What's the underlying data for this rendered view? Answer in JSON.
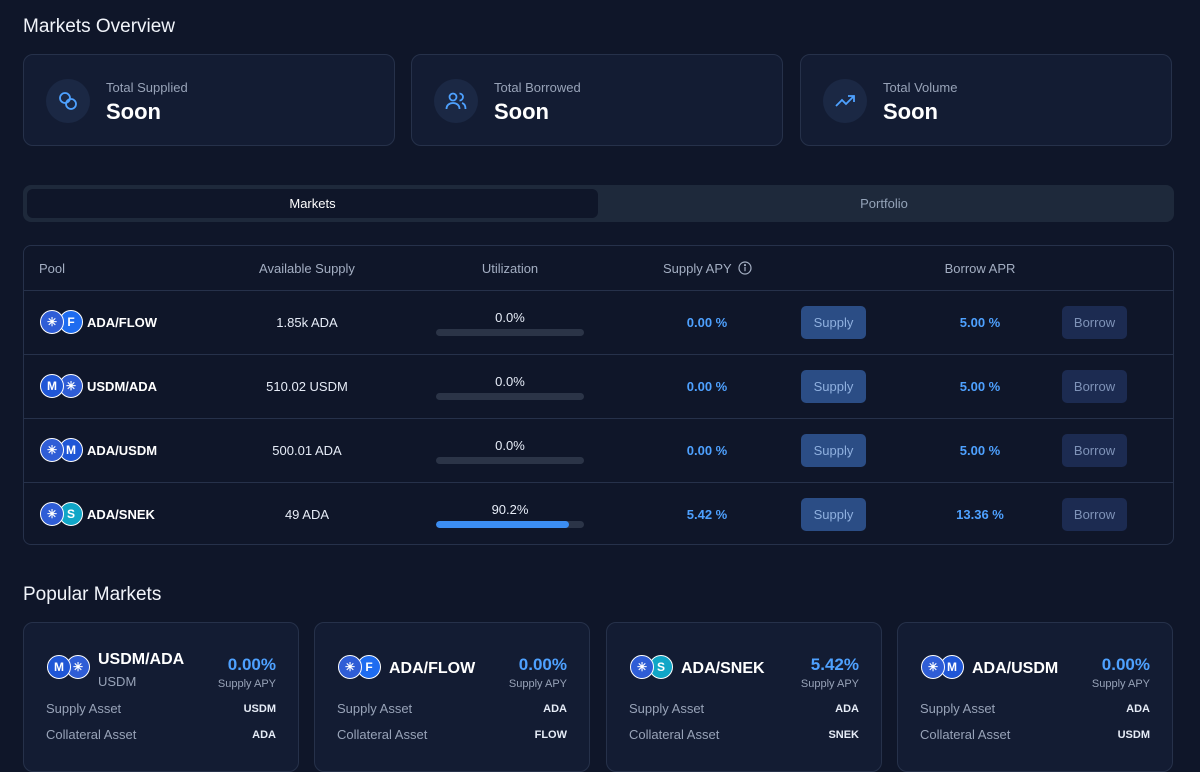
{
  "overview": {
    "title": "Markets Overview",
    "cards": [
      {
        "label": "Total Supplied",
        "value": "Soon",
        "icon": "coins-icon"
      },
      {
        "label": "Total Borrowed",
        "value": "Soon",
        "icon": "users-icon"
      },
      {
        "label": "Total Volume",
        "value": "Soon",
        "icon": "trending-up-icon"
      }
    ]
  },
  "tabs": {
    "markets": "Markets",
    "portfolio": "Portfolio",
    "active": "Markets"
  },
  "table": {
    "headers": {
      "pool": "Pool",
      "available": "Available Supply",
      "utilization": "Utilization",
      "supply_apy": "Supply APY",
      "borrow_apr": "Borrow APR"
    },
    "supply_button": "Supply",
    "borrow_button": "Borrow",
    "rows": [
      {
        "pool": "ADA/FLOW",
        "available": "1.85k ADA",
        "utilization": "0.0%",
        "utilization_fraction": 0.0,
        "supply_apy": "0.00 %",
        "borrow_apr": "5.00 %"
      },
      {
        "pool": "USDM/ADA",
        "available": "510.02 USDM",
        "utilization": "0.0%",
        "utilization_fraction": 0.0,
        "supply_apy": "0.00 %",
        "borrow_apr": "5.00 %"
      },
      {
        "pool": "ADA/USDM",
        "available": "500.01 ADA",
        "utilization": "0.0%",
        "utilization_fraction": 0.0,
        "supply_apy": "0.00 %",
        "borrow_apr": "5.00 %"
      },
      {
        "pool": "ADA/SNEK",
        "available": "49 ADA",
        "utilization": "90.2%",
        "utilization_fraction": 0.902,
        "supply_apy": "5.42 %",
        "borrow_apr": "13.36 %"
      }
    ]
  },
  "popular": {
    "title": "Popular Markets",
    "apy_label": "Supply APY",
    "supply_asset_label": "Supply Asset",
    "collateral_asset_label": "Collateral Asset",
    "cards": [
      {
        "name": "USDM/ADA",
        "sub": "USDM",
        "apy": "0.00%",
        "supply_asset": "USDM",
        "collateral_asset": "ADA"
      },
      {
        "name": "ADA/FLOW",
        "apy": "0.00%",
        "supply_asset": "ADA",
        "collateral_asset": "FLOW"
      },
      {
        "name": "ADA/SNEK",
        "apy": "5.42%",
        "supply_asset": "ADA",
        "collateral_asset": "SNEK"
      },
      {
        "name": "ADA/USDM",
        "apy": "0.00%",
        "supply_asset": "ADA",
        "collateral_asset": "USDM"
      }
    ]
  },
  "colors": {
    "background": "#0f1629",
    "accent": "#4ea1ff",
    "card": "#131c33"
  }
}
